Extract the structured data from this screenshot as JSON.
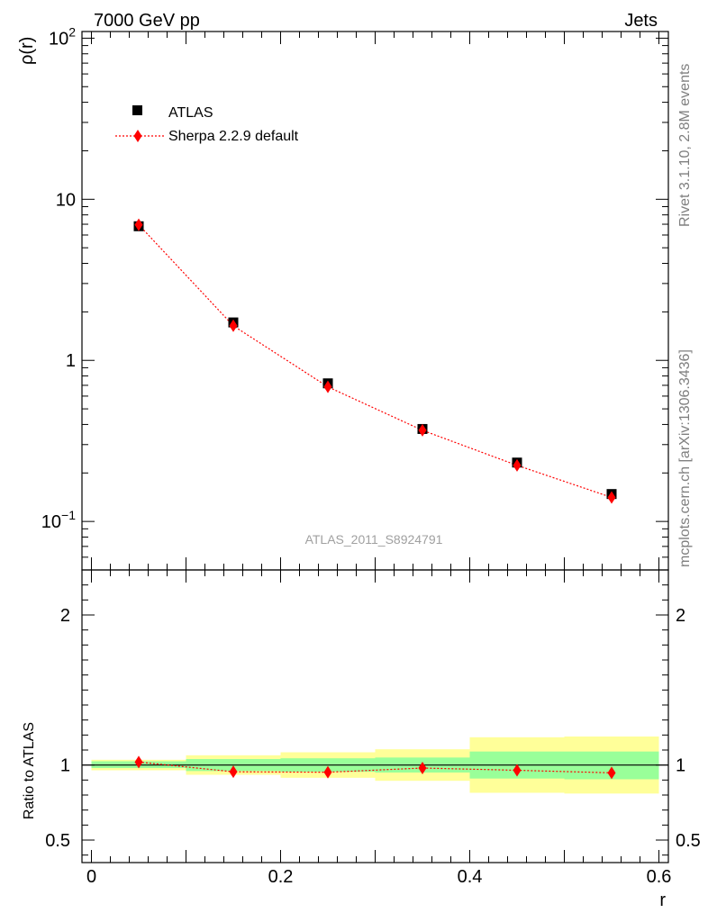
{
  "header": {
    "left": "7000 GeV pp",
    "right": "Jets"
  },
  "side_text": {
    "rivet": "Rivet 3.1.10,  2.8M events",
    "mcplots": "mcplots.cern.ch [arXiv:1306.3436]"
  },
  "watermark": "ATLAS_2011_S8924791",
  "colors": {
    "data": "#000000",
    "mc": "#ff0000",
    "band_inner": "#99ff99",
    "band_outer": "#ffff99"
  },
  "chart_data": [
    {
      "type": "scatter",
      "panel": "main",
      "ylabel": "ρ(r)",
      "yscale": "log",
      "ylim": [
        0.05,
        110
      ],
      "xlim": [
        -0.01,
        0.61
      ],
      "ytick_labels": [
        "10^-1",
        "1",
        "10",
        "10^2"
      ],
      "legend": {
        "position": "top-left",
        "entries": [
          "ATLAS",
          "Sherpa 2.2.9 default"
        ]
      },
      "series": [
        {
          "name": "ATLAS",
          "marker": "square",
          "x": [
            0.05,
            0.15,
            0.25,
            0.35,
            0.45,
            0.55
          ],
          "y": [
            6.8,
            1.72,
            0.72,
            0.375,
            0.232,
            0.148
          ]
        },
        {
          "name": "Sherpa 2.2.9 default",
          "marker": "diamond",
          "line": "dotted",
          "x": [
            0.05,
            0.15,
            0.25,
            0.35,
            0.45,
            0.55
          ],
          "y": [
            6.95,
            1.64,
            0.685,
            0.368,
            0.223,
            0.141
          ]
        }
      ]
    },
    {
      "type": "scatter",
      "panel": "ratio",
      "xlabel": "r",
      "ylabel": "Ratio to ATLAS",
      "ylim": [
        0.35,
        2.3
      ],
      "xlim": [
        -0.01,
        0.61
      ],
      "xtick_labels": [
        "0",
        "0.2",
        "0.4",
        "0.6"
      ],
      "ytick_labels": [
        "0.5",
        "1",
        "2"
      ],
      "bins": [
        [
          0.0,
          0.1
        ],
        [
          0.1,
          0.2
        ],
        [
          0.2,
          0.3
        ],
        [
          0.3,
          0.4
        ],
        [
          0.4,
          0.5
        ],
        [
          0.5,
          0.6
        ]
      ],
      "band_inner": [
        [
          0.98,
          1.025
        ],
        [
          0.96,
          1.04
        ],
        [
          0.955,
          1.045
        ],
        [
          0.95,
          1.05
        ],
        [
          0.91,
          1.09
        ],
        [
          0.905,
          1.09
        ]
      ],
      "band_outer": [
        [
          0.965,
          1.035
        ],
        [
          0.935,
          1.065
        ],
        [
          0.915,
          1.085
        ],
        [
          0.895,
          1.105
        ],
        [
          0.815,
          1.185
        ],
        [
          0.81,
          1.19
        ]
      ],
      "series": [
        {
          "name": "Sherpa 2.2.9 default",
          "x": [
            0.05,
            0.15,
            0.25,
            0.35,
            0.45,
            0.55
          ],
          "y": [
            1.02,
            0.955,
            0.952,
            0.98,
            0.965,
            0.948
          ]
        }
      ]
    }
  ]
}
